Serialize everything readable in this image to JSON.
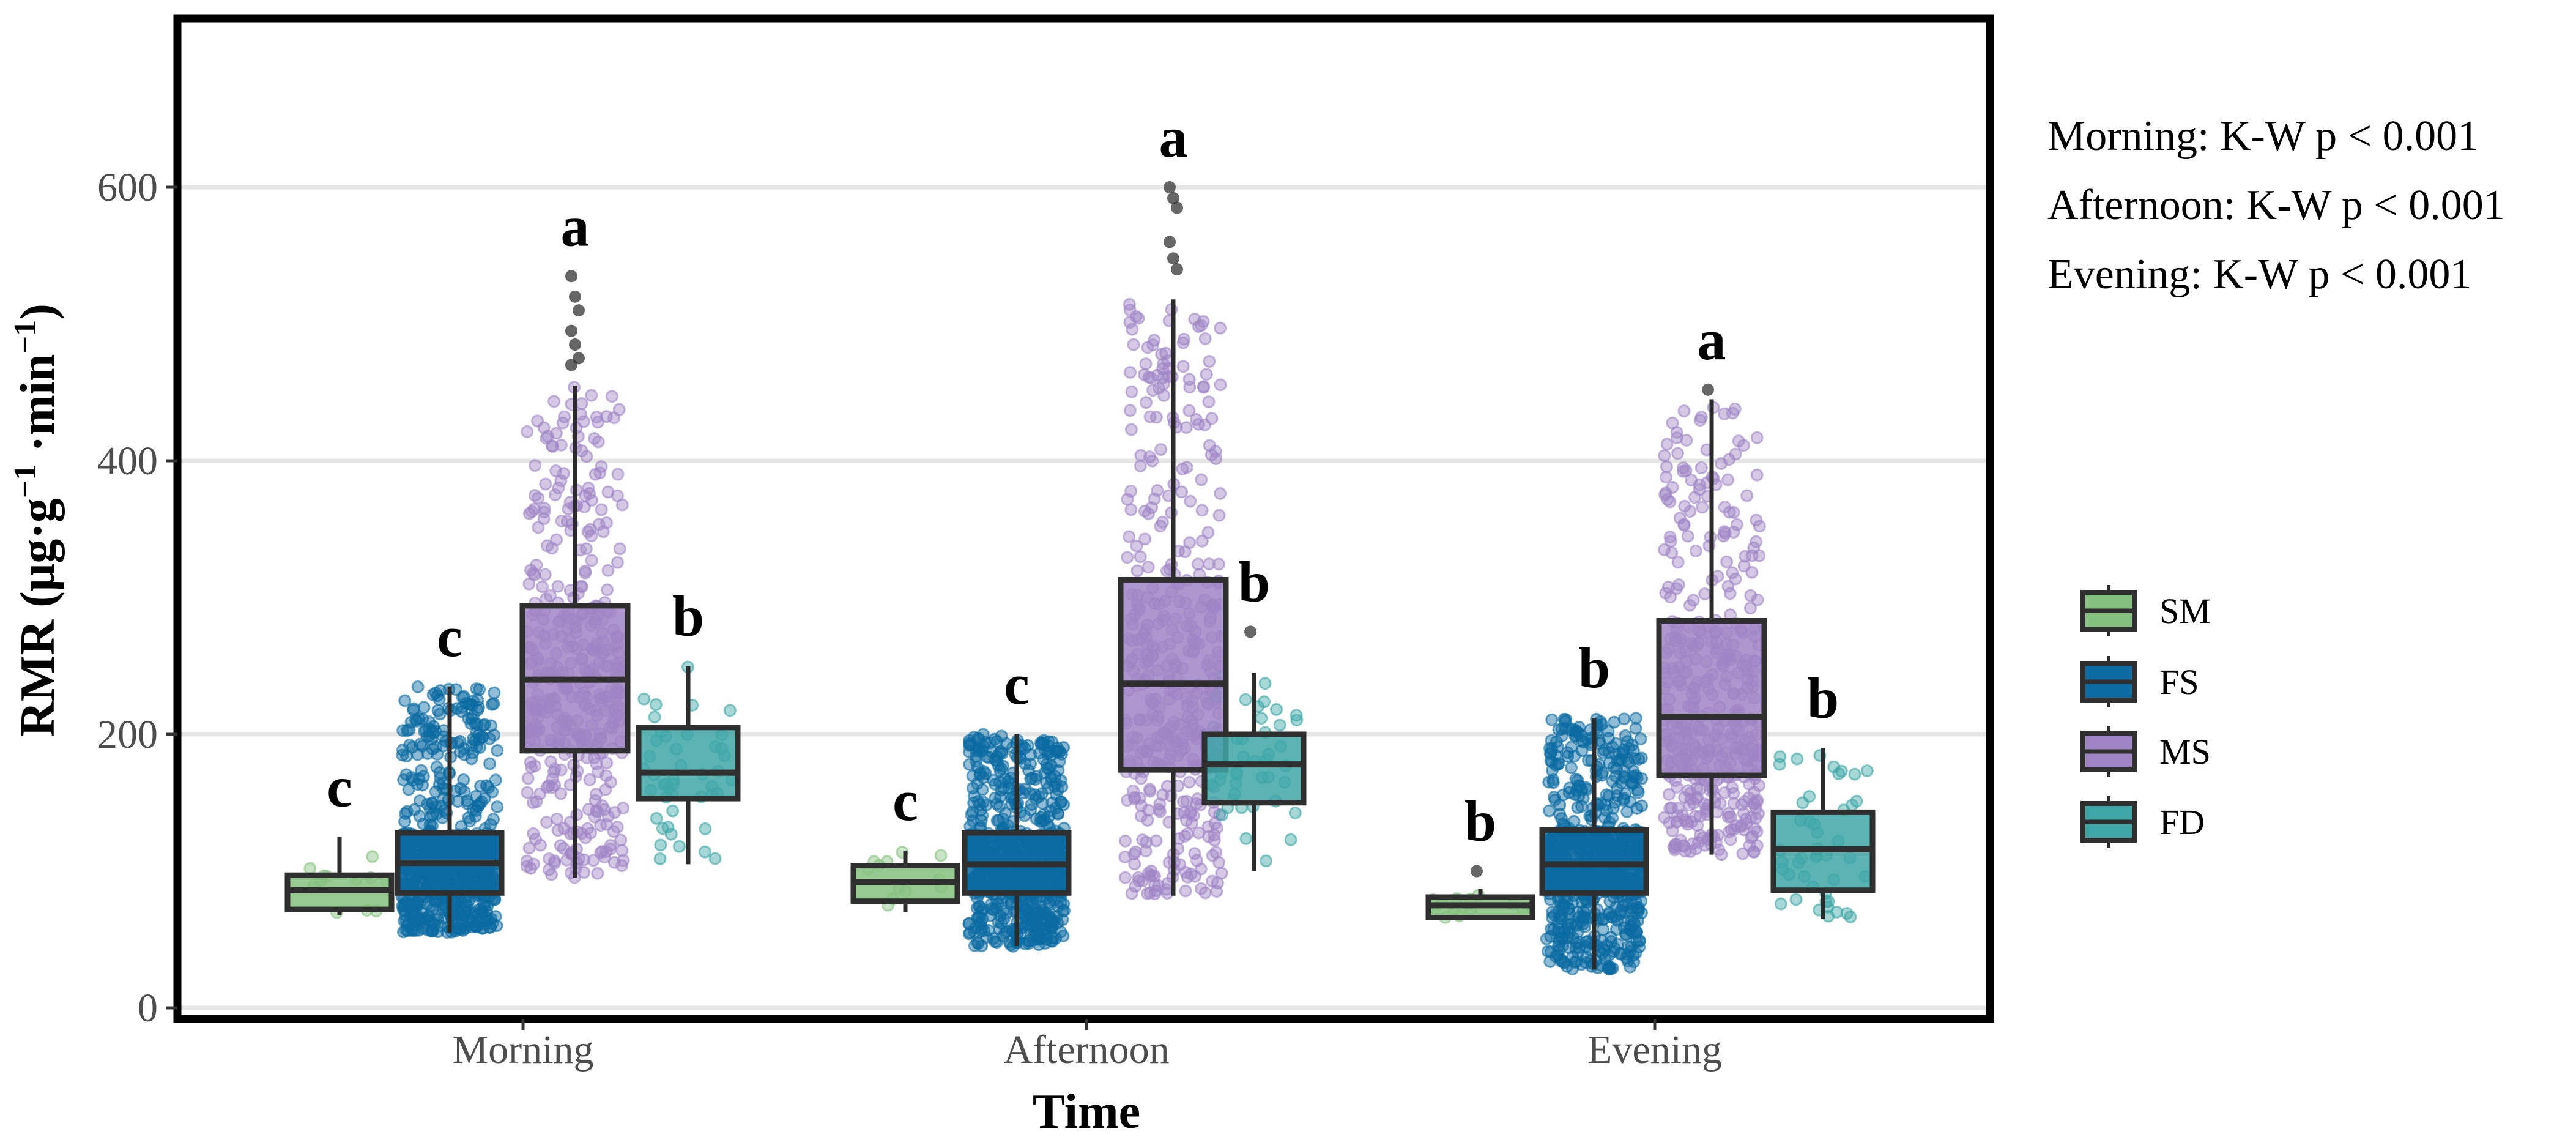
{
  "chart_data": {
    "type": "boxplot",
    "xlabel": "Time",
    "ylabel": {
      "base": "RMR (μg·g",
      "sup1": "−1",
      "mid": " ·min",
      "sup2": "−1",
      "end": ")"
    },
    "ylim": [
      0,
      750
    ],
    "yticks": [
      0,
      200,
      400,
      600
    ],
    "grid": true,
    "legend_position": "right",
    "categories": [
      "Morning",
      "Afternoon",
      "Evening"
    ],
    "series": [
      {
        "name": "SM",
        "color": "#85c17e",
        "boxes": [
          {
            "whisker_low": 68,
            "q1": 72,
            "median": 86,
            "q3": 97,
            "whisker_high": 125,
            "sig": "c"
          },
          {
            "whisker_low": 70,
            "q1": 78,
            "median": 92,
            "q3": 104,
            "whisker_high": 115,
            "sig": "c"
          },
          {
            "whisker_low": 65,
            "q1": 66,
            "median": 75,
            "q3": 81,
            "whisker_high": 87,
            "sig": "b"
          }
        ]
      },
      {
        "name": "FS",
        "color": "#0a6aa1",
        "boxes": [
          {
            "whisker_low": 55,
            "q1": 84,
            "median": 106,
            "q3": 128,
            "whisker_high": 235,
            "sig": "c"
          },
          {
            "whisker_low": 45,
            "q1": 84,
            "median": 105,
            "q3": 128,
            "whisker_high": 200,
            "sig": "c"
          },
          {
            "whisker_low": 28,
            "q1": 84,
            "median": 105,
            "q3": 130,
            "whisker_high": 212,
            "sig": "b"
          }
        ]
      },
      {
        "name": "MS",
        "color": "#a085c6",
        "boxes": [
          {
            "whisker_low": 95,
            "q1": 188,
            "median": 240,
            "q3": 294,
            "whisker_high": 455,
            "sig": "a"
          },
          {
            "whisker_low": 82,
            "q1": 174,
            "median": 237,
            "q3": 313,
            "whisker_high": 518,
            "sig": "a"
          },
          {
            "whisker_low": 112,
            "q1": 170,
            "median": 213,
            "q3": 283,
            "whisker_high": 445,
            "sig": "a"
          }
        ]
      },
      {
        "name": "FD",
        "color": "#3ea6a7",
        "boxes": [
          {
            "whisker_low": 105,
            "q1": 153,
            "median": 172,
            "q3": 205,
            "whisker_high": 250,
            "sig": "b"
          },
          {
            "whisker_low": 100,
            "q1": 150,
            "median": 178,
            "q3": 200,
            "whisker_high": 245,
            "sig": "b"
          },
          {
            "whisker_low": 65,
            "q1": 86,
            "median": 116,
            "q3": 143,
            "whisker_high": 190,
            "sig": "b"
          }
        ]
      }
    ],
    "outliers": [
      {
        "time": 0,
        "group": 2,
        "values": [
          535,
          520,
          510,
          495,
          485,
          475,
          470
        ]
      },
      {
        "time": 1,
        "group": 2,
        "values": [
          600,
          592,
          585,
          560,
          548,
          540
        ]
      },
      {
        "time": 1,
        "group": 3,
        "values": [
          275
        ]
      },
      {
        "time": 2,
        "group": 0,
        "values": [
          100
        ]
      },
      {
        "time": 2,
        "group": 2,
        "values": [
          452
        ]
      }
    ],
    "annotations": [
      "Morning: K-W p < 0.001",
      "Afternoon: K-W p < 0.001",
      "Evening: K-W p < 0.001"
    ]
  }
}
